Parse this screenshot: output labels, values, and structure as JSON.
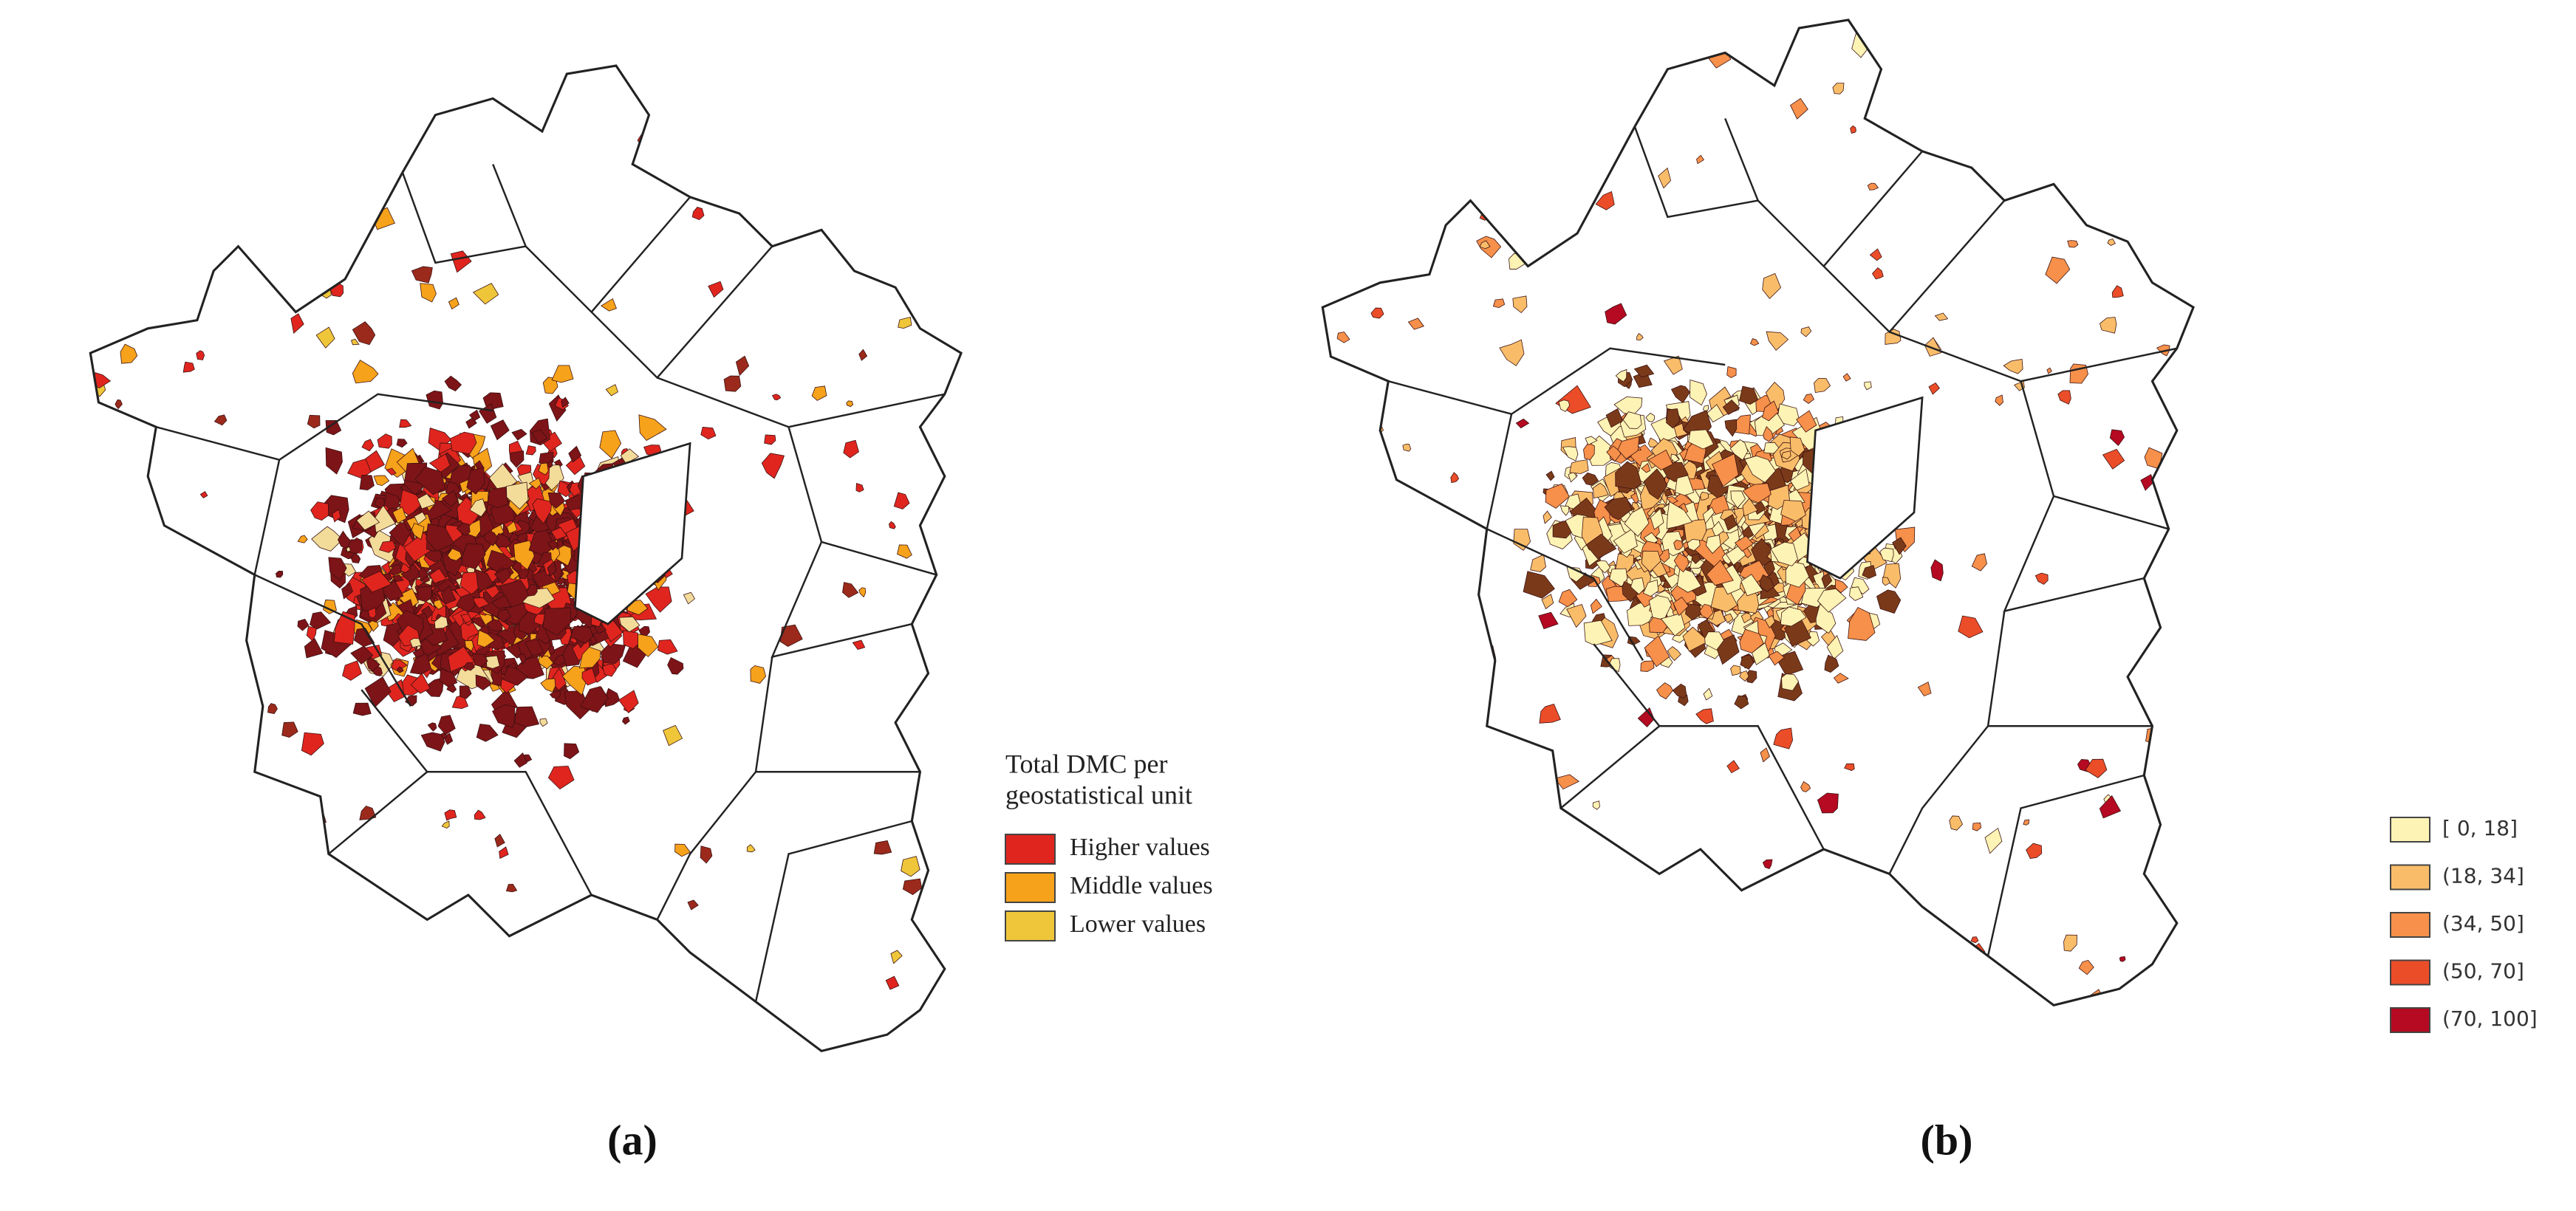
{
  "panels": [
    {
      "label": "(a)",
      "legend": {
        "title": [
          "Total DMC per",
          "geostatistical unit"
        ],
        "items": [
          {
            "label": "Higher values",
            "color": "#e0251f"
          },
          {
            "label": "Middle values",
            "color": "#f7a21b"
          },
          {
            "label": "Lower values",
            "color": "#efc63a"
          }
        ]
      }
    },
    {
      "label": "(b)",
      "legend": {
        "items": [
          {
            "label": "[ 0, 18]",
            "color": "#fdf3b4"
          },
          {
            "label": "(18, 34]",
            "color": "#f9bd6a"
          },
          {
            "label": "(34, 50]",
            "color": "#f6904a"
          },
          {
            "label": "(50, 70]",
            "color": "#ec4d29"
          },
          {
            "label": "(70, 100]",
            "color": "#b50a22"
          }
        ]
      }
    }
  ]
}
